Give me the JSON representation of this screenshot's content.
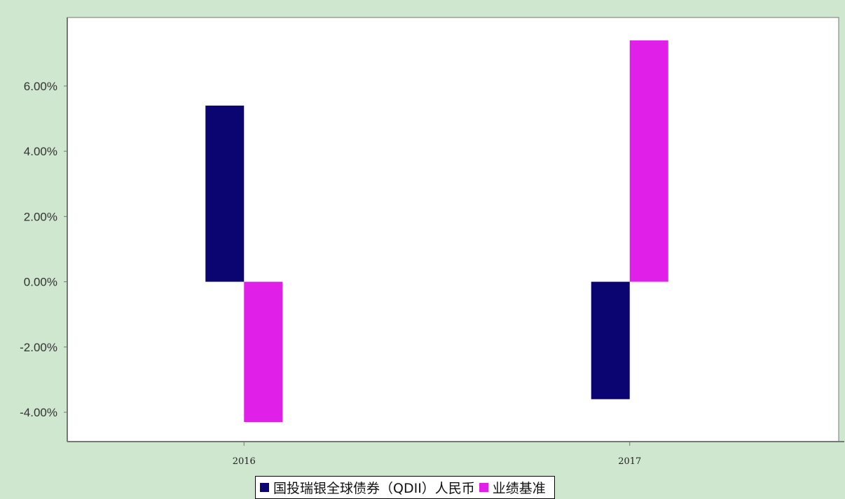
{
  "chart_data": {
    "type": "bar",
    "title": "",
    "xlabel": "",
    "ylabel": "",
    "categories": [
      "2016",
      "2017"
    ],
    "ylim": [
      -4.9,
      8.1
    ],
    "yticks": [
      -4.0,
      -2.0,
      0.0,
      2.0,
      4.0,
      6.0
    ],
    "ytick_labels": [
      "-4.00%",
      "-2.00%",
      "0.00%",
      "2.00%",
      "4.00%",
      "6.00%"
    ],
    "grid": false,
    "legend_position": "bottom-center",
    "series": [
      {
        "name": "国投瑞银全球债券（QDII）人民币",
        "color": "#0a0570",
        "values": [
          5.4,
          -3.6
        ]
      },
      {
        "name": "业绩基准",
        "color": "#e020e8",
        "values": [
          -4.3,
          7.4
        ]
      }
    ]
  }
}
